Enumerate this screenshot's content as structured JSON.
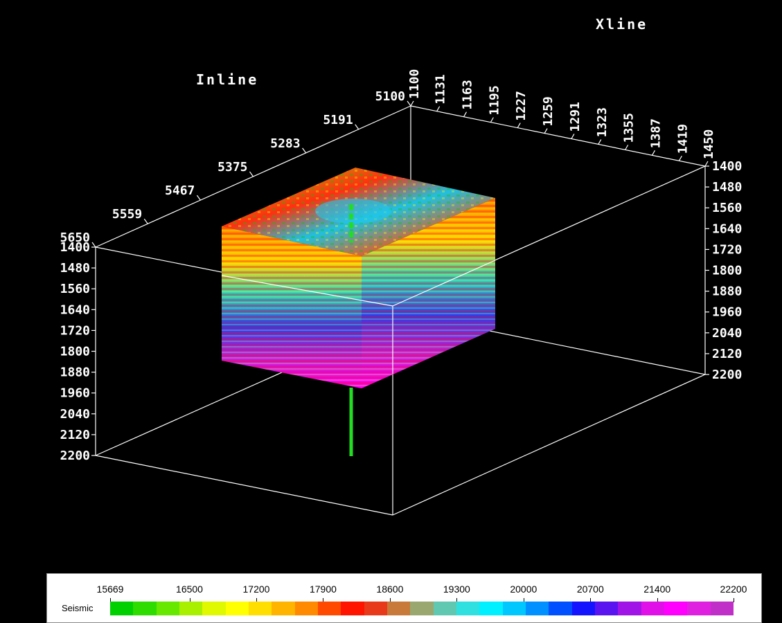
{
  "chart_data": {
    "type": "3d-seismic-cube",
    "axes": {
      "inline": {
        "title": "Inline",
        "ticks": [
          "5100",
          "5191",
          "5283",
          "5375",
          "5467",
          "5559",
          "5650"
        ],
        "range": [
          5100,
          5650
        ]
      },
      "xline": {
        "title": "Xline",
        "ticks": [
          "1100",
          "1131",
          "1163",
          "1195",
          "1227",
          "1259",
          "1291",
          "1323",
          "1355",
          "1387",
          "1419",
          "1450"
        ],
        "range": [
          1100,
          1450
        ]
      },
      "time": {
        "title": "",
        "ticks": [
          "1400",
          "1480",
          "1560",
          "1640",
          "1720",
          "1800",
          "1880",
          "1960",
          "2040",
          "2120",
          "2200"
        ],
        "range": [
          1400,
          2200
        ]
      }
    },
    "subvolume": {
      "attribute": "Seismic"
    },
    "well": {
      "color": "#22dd22"
    }
  },
  "legend": {
    "name": "Seismic",
    "values": [
      "15669",
      "16500",
      "17200",
      "17900",
      "18600",
      "19300",
      "20000",
      "20700",
      "21400",
      "22200"
    ],
    "range": [
      15669,
      22200
    ],
    "colors": [
      "#00d000",
      "#2fdc00",
      "#66e800",
      "#a8f000",
      "#e0f800",
      "#ffff00",
      "#ffde00",
      "#ffb400",
      "#ff8a00",
      "#ff4a00",
      "#ff1400",
      "#e83a1a",
      "#c87a3a",
      "#9aa870",
      "#60c8b0",
      "#30e0e0",
      "#00f0ff",
      "#00c8ff",
      "#0090ff",
      "#0050ff",
      "#1414ff",
      "#5a14f0",
      "#a014e8",
      "#e010e8",
      "#ff00ff",
      "#e020e0",
      "#c030c8"
    ]
  }
}
